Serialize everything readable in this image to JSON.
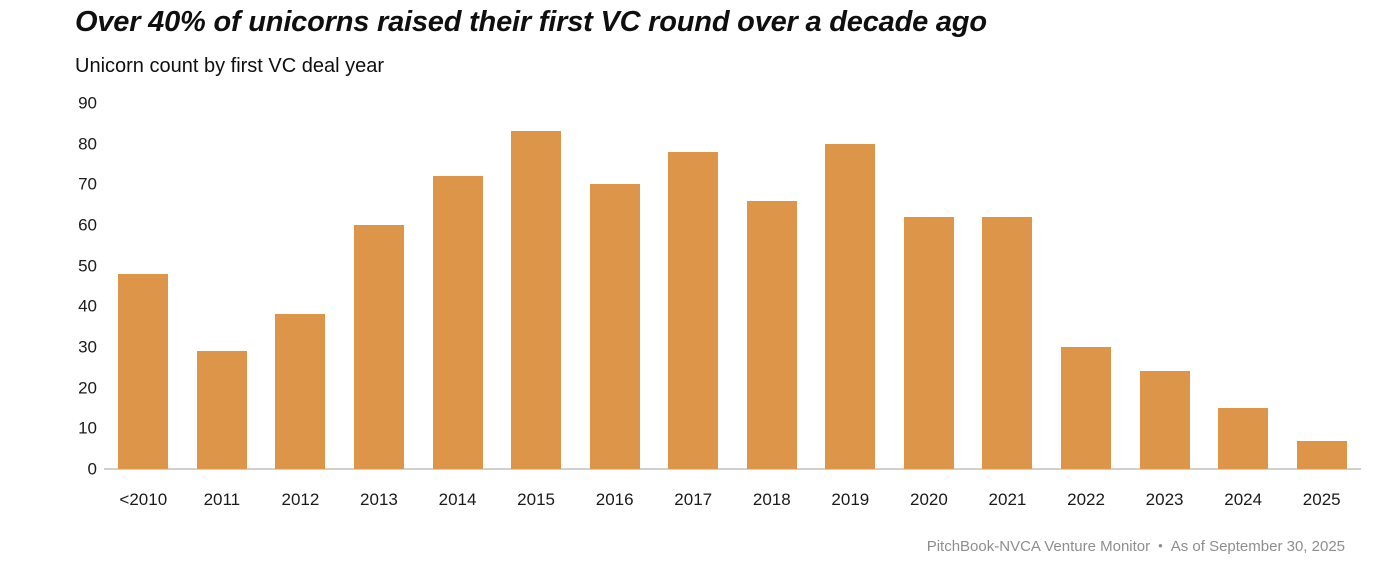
{
  "header": {
    "title": "Over 40% of unicorns raised their first VC round over a decade ago",
    "subtitle": "Unicorn count by first VC deal year"
  },
  "chart_data": {
    "type": "bar",
    "title": "Over 40% of unicorns raised their first VC round over a decade ago",
    "subtitle": "Unicorn count by first VC deal year",
    "categories": [
      "<2010",
      "2011",
      "2012",
      "2013",
      "2014",
      "2015",
      "2016",
      "2017",
      "2018",
      "2019",
      "2020",
      "2021",
      "2022",
      "2023",
      "2024",
      "2025"
    ],
    "values": [
      48,
      29,
      38,
      60,
      72,
      83,
      70,
      78,
      66,
      80,
      62,
      62,
      30,
      24,
      15,
      7
    ],
    "xlabel": "",
    "ylabel": "",
    "ylim": [
      0,
      90
    ],
    "yticks": [
      0,
      10,
      20,
      30,
      40,
      50,
      60,
      70,
      80,
      90
    ],
    "grid": false,
    "legend": false,
    "bar_color": "#DC9549",
    "axis_line_color": "#d2d0cd",
    "tick_label_color": "#1a1a1a"
  },
  "footer": {
    "source": "PitchBook-NVCA Venture Monitor",
    "bullet": "•",
    "asof": "As of September 30, 2025"
  }
}
